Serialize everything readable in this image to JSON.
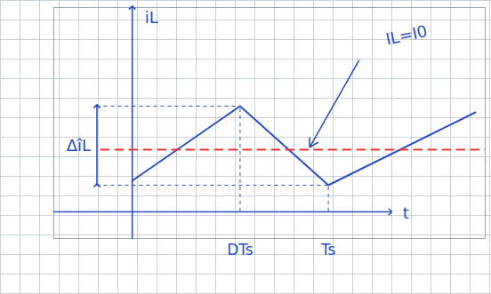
{
  "chart_data": {
    "type": "line",
    "xlabel": "t",
    "ylabel": "iL",
    "xlim": [
      -0.4,
      1.8
    ],
    "ylim": [
      -0.3,
      2.3
    ],
    "xticks": [
      {
        "value": 0.55,
        "label": "DTs"
      },
      {
        "value": 1,
        "label": "Ts"
      }
    ],
    "yticks": [],
    "tick_labels": "x",
    "grid": true,
    "ripple_label": "ΔîL",
    "series": [
      {
        "x": [
          0,
          0.55,
          1,
          1.75
        ],
        "values": [
          0.35,
          1.19,
          0.3,
          1.12
        ],
        "color": "#2b4fc2",
        "line_style": "solid"
      },
      {
        "x": [
          -0.16,
          1.8
        ],
        "values": [
          0.7,
          0.7
        ],
        "color": "#e8343a",
        "line_style": "dashed",
        "label": "IL=I0"
      }
    ]
  }
}
